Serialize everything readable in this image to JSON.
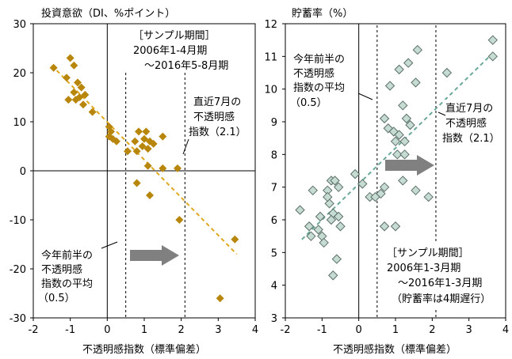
{
  "chart_data": [
    {
      "type": "scatter",
      "ylabel": "投資意欲（DI、%ポイント）",
      "xlabel": "不透明感指数（標準偏差）",
      "xlim": [
        -2,
        4
      ],
      "ylim": [
        -30,
        30
      ],
      "x_ticks": [
        "-2",
        "-1",
        "0",
        "1",
        "2",
        "3",
        "4"
      ],
      "y_ticks": [
        "30",
        "20",
        "10",
        "0",
        "-10",
        "-20",
        "-30"
      ],
      "grid": false,
      "marker_color": "#b8860b",
      "trend_color": "#e0a81e",
      "series": [
        {
          "points": [
            [
              -1.45,
              21
            ],
            [
              -1.0,
              23
            ],
            [
              -0.9,
              21.5
            ],
            [
              -1.1,
              19
            ],
            [
              -0.8,
              18
            ],
            [
              -0.7,
              17
            ],
            [
              -0.9,
              16
            ],
            [
              -0.6,
              15.5
            ],
            [
              -0.75,
              15
            ],
            [
              -1.05,
              14.5
            ],
            [
              -0.85,
              14.5
            ],
            [
              -0.65,
              13.5
            ],
            [
              -0.4,
              12
            ],
            [
              0.05,
              9
            ],
            [
              0.1,
              8
            ],
            [
              0.05,
              7
            ],
            [
              0.15,
              6.5
            ],
            [
              0.25,
              6
            ],
            [
              0.55,
              4
            ],
            [
              0.8,
              4
            ],
            [
              0.75,
              6
            ],
            [
              1.0,
              6.5
            ],
            [
              0.95,
              5
            ],
            [
              1.1,
              4.5
            ],
            [
              1.15,
              6
            ],
            [
              1.05,
              8
            ],
            [
              1.25,
              5.5
            ],
            [
              1.5,
              7
            ],
            [
              0.85,
              8
            ],
            [
              1.1,
              1
            ],
            [
              1.5,
              0.5
            ],
            [
              1.9,
              0.5
            ],
            [
              0.8,
              -2.5
            ],
            [
              1.15,
              -5
            ],
            [
              1.95,
              -10
            ],
            [
              3.45,
              -14
            ],
            [
              3.05,
              -26
            ]
          ]
        }
      ],
      "trend": [
        [
          -1.5,
          21.5
        ],
        [
          3.5,
          -17
        ]
      ],
      "vlines": [
        0.5,
        2.1
      ],
      "annotations": {
        "period_title": "［サンプル期間］",
        "period_line1": "2006年1-4月期",
        "period_line2": "～2016年5-8月期",
        "recent_line1": "直近7月の",
        "recent_line2": "不透明感",
        "recent_line3": "指数（2.1）",
        "avg_line1": "今年前半の",
        "avg_line2": "不透明感",
        "avg_line3": "指数の平均",
        "avg_line4": "（0.5）"
      }
    },
    {
      "type": "scatter",
      "ylabel": "貯蓄率（%）",
      "xlabel": "不透明感指数（標準偏差）",
      "xlim": [
        -2,
        4
      ],
      "ylim": [
        3,
        12
      ],
      "x_ticks": [
        "-2",
        "-1",
        "0",
        "1",
        "2",
        "3",
        "4"
      ],
      "y_ticks": [
        "12",
        "11",
        "10",
        "9",
        "8",
        "7",
        "6",
        "5",
        "4",
        "3"
      ],
      "grid": false,
      "marker_fill": "#c6dcd2",
      "marker_stroke": "#5a6f68",
      "trend_color": "#6aa897",
      "series": [
        {
          "points": [
            [
              -1.6,
              6.3
            ],
            [
              -1.35,
              5.8
            ],
            [
              -1.3,
              5.5
            ],
            [
              -1.25,
              6.9
            ],
            [
              -1.1,
              5.7
            ],
            [
              -1.05,
              6.1
            ],
            [
              -1.0,
              5.5
            ],
            [
              -0.95,
              5.3
            ],
            [
              -0.85,
              6.9
            ],
            [
              -0.8,
              6.5
            ],
            [
              -0.85,
              6.7
            ],
            [
              -0.75,
              7.2
            ],
            [
              -0.65,
              7.2
            ],
            [
              -0.7,
              6.2
            ],
            [
              -0.75,
              6.0
            ],
            [
              -0.5,
              5.8
            ],
            [
              -0.6,
              4.8
            ],
            [
              -0.7,
              4.3
            ],
            [
              -0.55,
              6.1
            ],
            [
              -0.55,
              7.0
            ],
            [
              -0.1,
              7.4
            ],
            [
              0.1,
              7.1
            ],
            [
              0.3,
              6.7
            ],
            [
              0.45,
              6.7
            ],
            [
              0.6,
              6.8
            ],
            [
              0.95,
              8.7
            ],
            [
              1.0,
              8.4
            ],
            [
              1.05,
              8.0
            ],
            [
              1.1,
              8.6
            ],
            [
              1.25,
              8.0
            ],
            [
              1.25,
              8.4
            ],
            [
              1.2,
              9.5
            ],
            [
              1.3,
              9.1
            ],
            [
              1.4,
              8.9
            ],
            [
              1.1,
              10.6
            ],
            [
              1.35,
              10.8
            ],
            [
              1.6,
              11.2
            ],
            [
              0.7,
              9.1
            ],
            [
              0.85,
              10.1
            ],
            [
              0.8,
              8.8
            ],
            [
              1.55,
              10.2
            ],
            [
              2.4,
              10.5
            ],
            [
              0.7,
              7.0
            ],
            [
              0.7,
              5.8
            ],
            [
              1.2,
              7.2
            ],
            [
              1.0,
              5.8
            ],
            [
              1.9,
              6.7
            ],
            [
              1.55,
              6.9
            ],
            [
              3.65,
              11.5
            ],
            [
              3.65,
              11.0
            ]
          ]
        }
      ],
      "trend": [
        [
          -1.55,
          5.4
        ],
        [
          3.65,
          11.1
        ]
      ],
      "vlines": [
        0.5,
        2.1
      ],
      "annotations": {
        "avg_line1": "今年前半の",
        "avg_line2": "不透明感",
        "avg_line3": "指数の平均",
        "avg_line4": "（0.5）",
        "recent_line1": "直近7月の",
        "recent_line2": "不透明感",
        "recent_line3": "指数（2.1）",
        "period_title": "［サンプル期間］",
        "period_line1": "2006年1-3月期",
        "period_line2": "～2016年1-3月期",
        "period_line3": "（貯蓄率は4期遅行）"
      }
    }
  ]
}
